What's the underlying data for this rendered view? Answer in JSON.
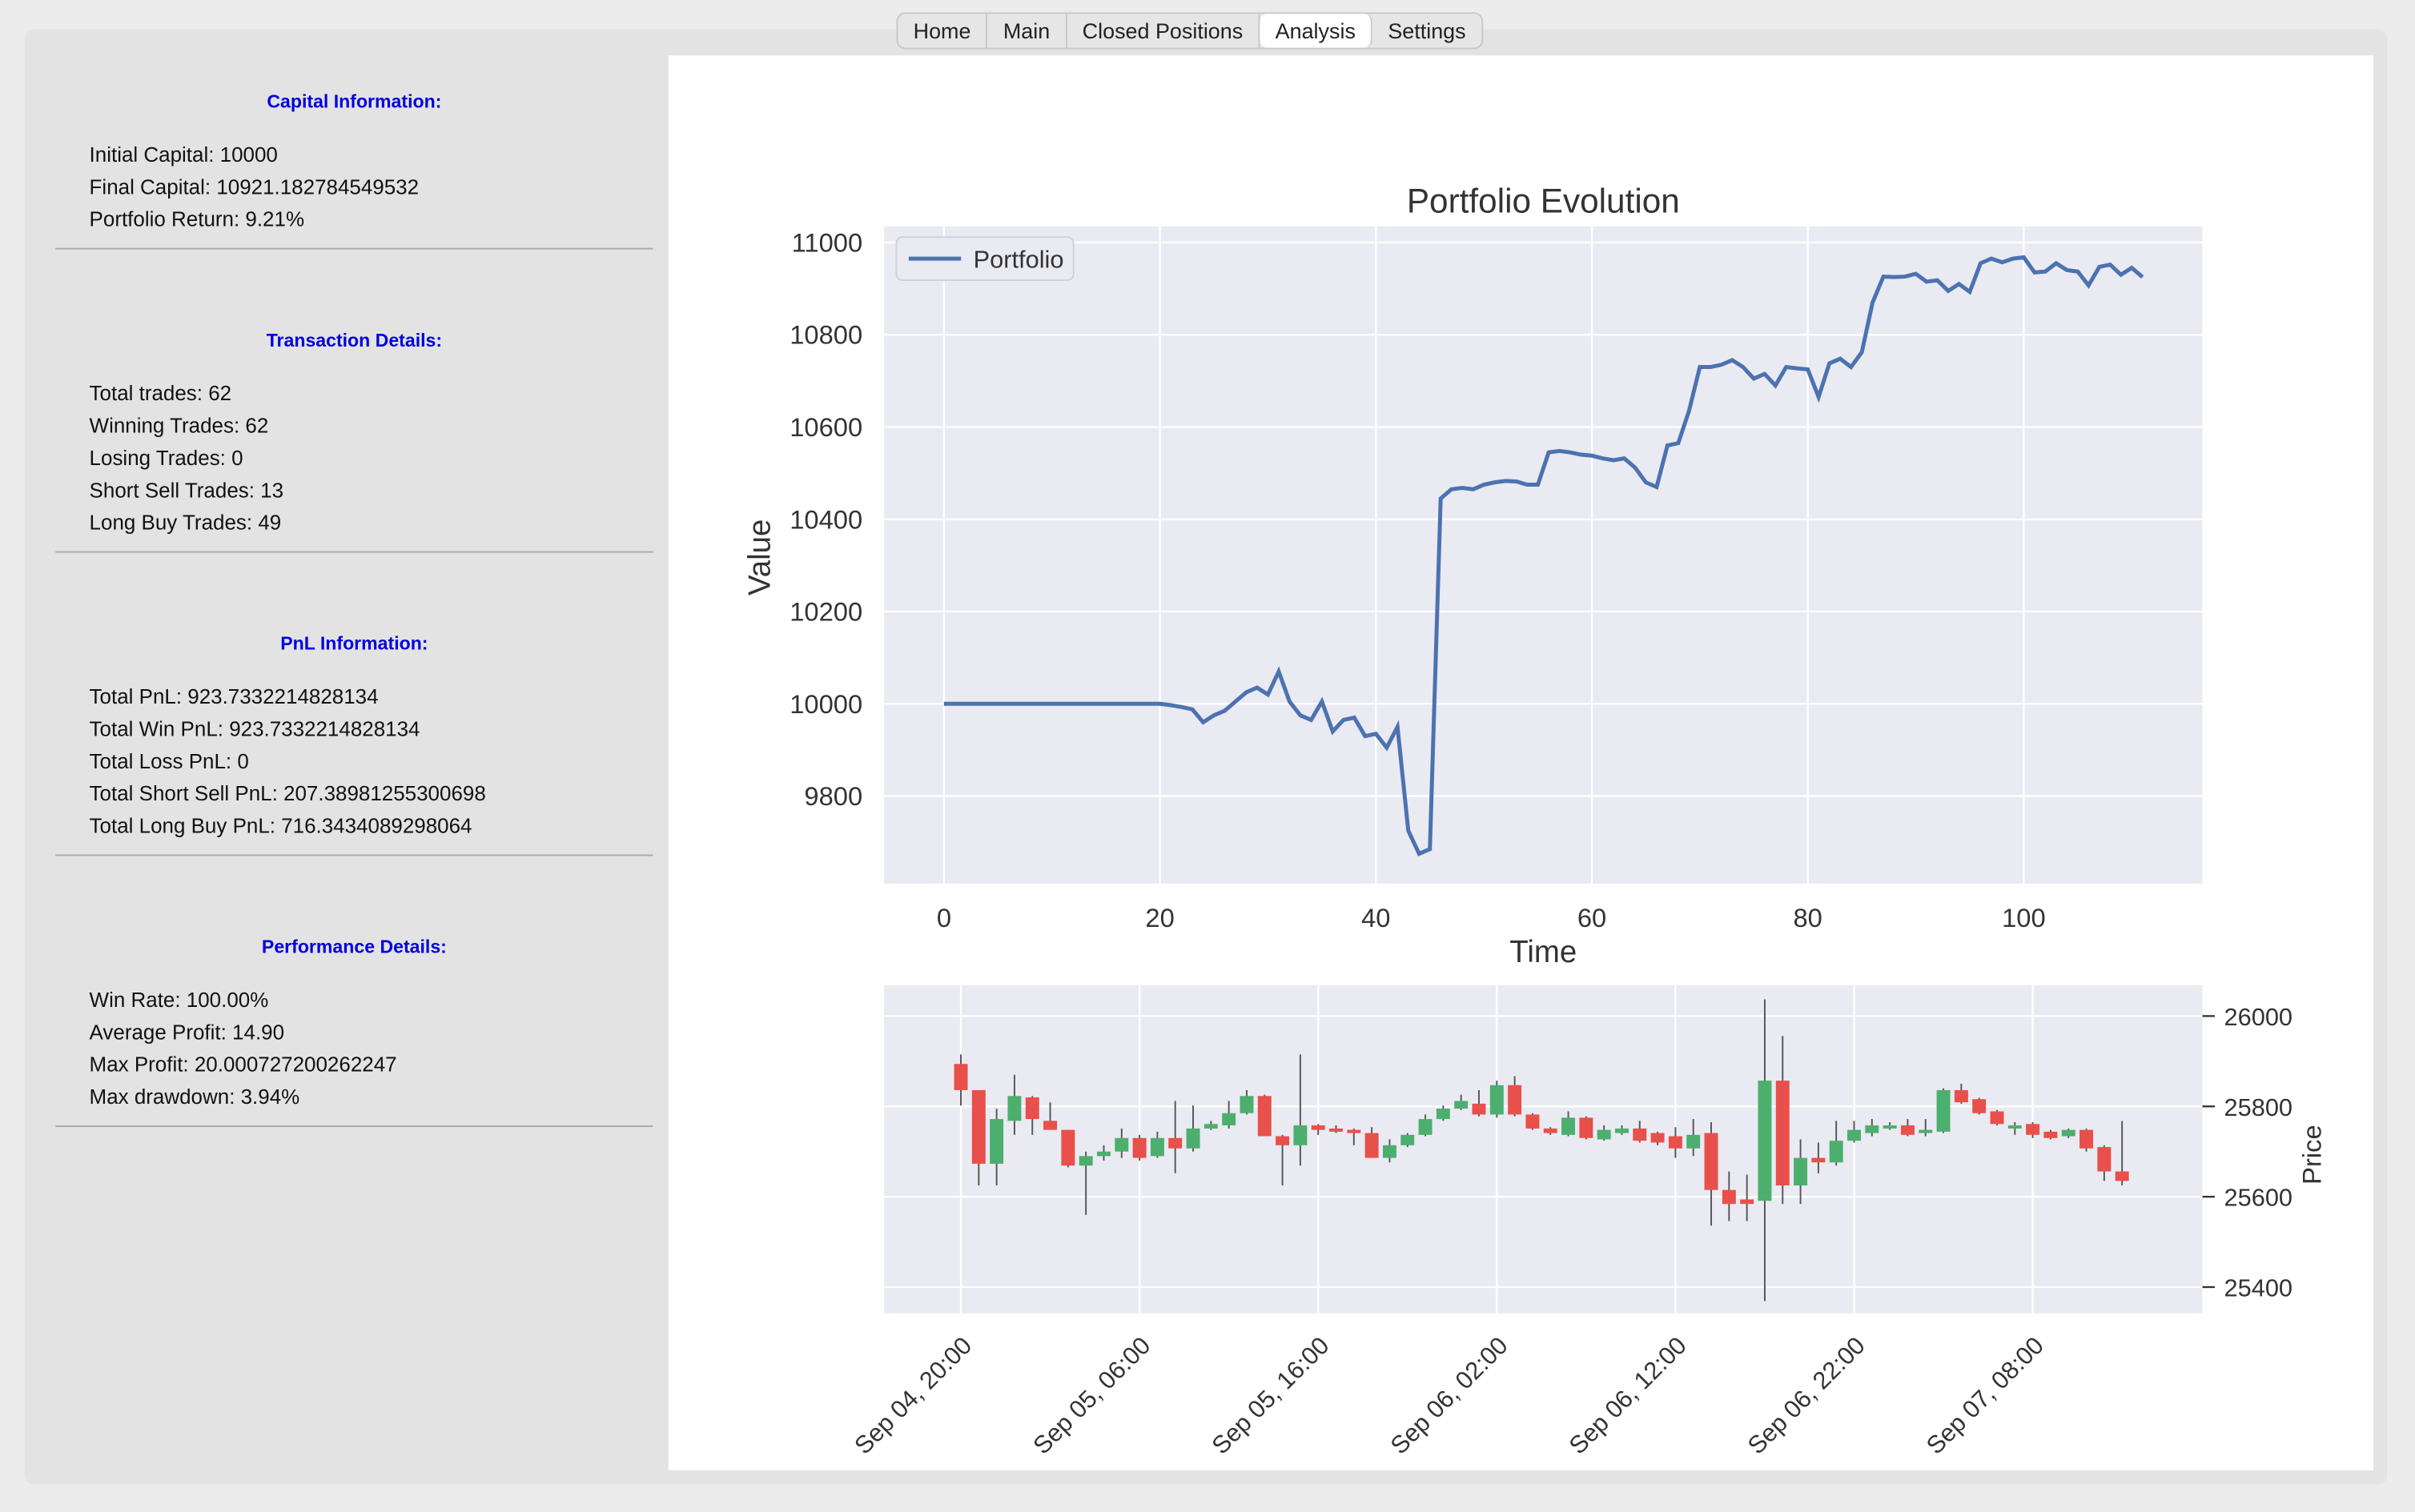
{
  "tabs": [
    "Home",
    "Main",
    "Closed Positions",
    "Analysis",
    "Settings"
  ],
  "active_tab": "Analysis",
  "sections": [
    {
      "title": "Capital Information:",
      "lines": [
        "Initial Capital: 10000",
        "Final Capital: 10921.182784549532",
        "Portfolio Return: 9.21%"
      ]
    },
    {
      "title": "Transaction Details:",
      "lines": [
        "Total trades: 62",
        "Winning Trades: 62",
        "Losing Trades: 0",
        "Short Sell Trades: 13",
        "Long Buy Trades: 49"
      ]
    },
    {
      "title": "PnL Information:",
      "lines": [
        "Total PnL: 923.7332214828134",
        "Total Win PnL: 923.7332214828134",
        "Total Loss PnL: 0",
        "Total Short Sell PnL: 207.38981255300698",
        "Total Long Buy PnL: 716.3434089298064"
      ]
    },
    {
      "title": "Performance Details:",
      "lines": [
        "Win Rate: 100.00%",
        "Average Profit: 14.90",
        "Max Profit: 20.000727200262247",
        "Max drawdown: 3.94%"
      ]
    }
  ],
  "chart_data": [
    {
      "type": "line",
      "title": "Portfolio Evolution",
      "xlabel": "Time",
      "ylabel": "Value",
      "legend": "upper left",
      "grid": true,
      "x": [
        0,
        1,
        2,
        3,
        4,
        5,
        6,
        7,
        8,
        9,
        10,
        11,
        12,
        13,
        14,
        15,
        16,
        17,
        18,
        19,
        20,
        21,
        22,
        23,
        24,
        25,
        26,
        27,
        28,
        29,
        30,
        31,
        32,
        33,
        34,
        35,
        36,
        37,
        38,
        39,
        40,
        41,
        42,
        43,
        44,
        45,
        46,
        47,
        48,
        49,
        50,
        51,
        52,
        53,
        54,
        55,
        56,
        57,
        58,
        59,
        60,
        61,
        62,
        63,
        64,
        65,
        66,
        67,
        68,
        69,
        70,
        71,
        72,
        73,
        74,
        75,
        76,
        77,
        78,
        79,
        80,
        81,
        82,
        83,
        84,
        85,
        86,
        87,
        88,
        89,
        90,
        91,
        92,
        93,
        94,
        95,
        96,
        97,
        98,
        99,
        100,
        101,
        102,
        103,
        104,
        105,
        106,
        107,
        108,
        109,
        110,
        111
      ],
      "series": [
        {
          "name": "Portfolio",
          "color": "#4c72b0",
          "values": [
            10000,
            10000,
            10000,
            10000,
            10000,
            10000,
            10000,
            10000,
            10000,
            10000,
            10000,
            10000,
            10000,
            10000,
            10000,
            10000,
            10000,
            10000,
            10000,
            10000,
            10000,
            9997,
            9993,
            9988,
            9960,
            9975,
            9985,
            10005,
            10025,
            10035,
            10020,
            10070,
            10005,
            9975,
            9965,
            10005,
            9940,
            9965,
            9970,
            9930,
            9935,
            9905,
            9950,
            9725,
            9675,
            9685,
            10445,
            10465,
            10468,
            10465,
            10475,
            10480,
            10483,
            10482,
            10475,
            10475,
            10545,
            10548,
            10545,
            10540,
            10538,
            10532,
            10528,
            10532,
            10512,
            10480,
            10470,
            10560,
            10565,
            10635,
            10730,
            10730,
            10735,
            10745,
            10730,
            10705,
            10715,
            10690,
            10730,
            10727,
            10725,
            10665,
            10738,
            10748,
            10730,
            10762,
            10870,
            10926,
            10925,
            10926,
            10932,
            10915,
            10918,
            10895,
            10910,
            10893,
            10955,
            10965,
            10957,
            10965,
            10968,
            10935,
            10937,
            10955,
            10940,
            10937,
            10907,
            10947,
            10952,
            10930,
            10945,
            10925
          ]
        }
      ],
      "xlim": [
        -5.55,
        116.55
      ],
      "xticks": [
        0,
        20,
        40,
        60,
        80,
        100
      ],
      "ylim": [
        9610,
        11035
      ],
      "yticks": [
        9800,
        10000,
        10200,
        10400,
        10600,
        10800,
        11000
      ]
    },
    {
      "type": "candlestick",
      "ylabel": "Price",
      "yaxis_side": "right",
      "grid": true,
      "up_color": "#4caf6e",
      "down_color": "#e8504b",
      "categories": [
        "Sep 04, 20:00",
        null,
        null,
        null,
        null,
        null,
        null,
        null,
        null,
        null,
        "Sep 05, 06:00",
        null,
        null,
        null,
        null,
        null,
        null,
        null,
        null,
        null,
        "Sep 05, 16:00",
        null,
        null,
        null,
        null,
        null,
        null,
        null,
        null,
        null,
        "Sep 06, 02:00",
        null,
        null,
        null,
        null,
        null,
        null,
        null,
        null,
        null,
        "Sep 06, 12:00",
        null,
        null,
        null,
        null,
        null,
        null,
        null,
        null,
        null,
        "Sep 06, 22:00",
        null,
        null,
        null,
        null,
        null,
        null,
        null,
        null,
        null,
        "Sep 07, 08:00",
        null,
        null,
        null,
        null,
        null
      ],
      "open": [
        25894,
        25836,
        25673,
        25768,
        25820,
        25768,
        25748,
        25669,
        25690,
        25700,
        25730,
        25690,
        25730,
        25707,
        25751,
        25758,
        25785,
        25823,
        25734,
        25714,
        25758,
        25751,
        25748,
        25741,
        25686,
        25714,
        25737,
        25772,
        25795,
        25806,
        25782,
        25847,
        25782,
        25751,
        25737,
        25775,
        25727,
        25741,
        25751,
        25741,
        25734,
        25707,
        25741,
        25615,
        25594,
        25591,
        25857,
        25625,
        25686,
        25676,
        25724,
        25741,
        25751,
        25758,
        25741,
        25744,
        25836,
        25816,
        25789,
        25751,
        25761,
        25744,
        25734,
        25748,
        25710,
        25656
      ],
      "high": [
        25915,
        25836,
        25795,
        25870,
        25823,
        25809,
        25748,
        25700,
        25714,
        25751,
        25737,
        25744,
        25812,
        25802,
        25768,
        25812,
        25836,
        25826,
        25737,
        25915,
        25761,
        25758,
        25751,
        25754,
        25727,
        25741,
        25782,
        25802,
        25826,
        25836,
        25857,
        25867,
        25785,
        25754,
        25789,
        25778,
        25758,
        25758,
        25768,
        25744,
        25754,
        25772,
        25765,
        25656,
        25649,
        26037,
        25956,
        25727,
        25720,
        25768,
        25768,
        25772,
        25765,
        25772,
        25772,
        25840,
        25850,
        25819,
        25792,
        25765,
        25765,
        25748,
        25751,
        25751,
        25714,
        25768
      ],
      "low": [
        25802,
        25625,
        25625,
        25737,
        25737,
        25748,
        25665,
        25560,
        25680,
        25686,
        25680,
        25686,
        25652,
        25700,
        25748,
        25751,
        25782,
        25734,
        25625,
        25669,
        25737,
        25741,
        25714,
        25686,
        25676,
        25710,
        25734,
        25768,
        25792,
        25778,
        25775,
        25778,
        25748,
        25737,
        25734,
        25727,
        25724,
        25737,
        25720,
        25714,
        25686,
        25690,
        25536,
        25546,
        25546,
        25369,
        25584,
        25584,
        25652,
        25669,
        25720,
        25734,
        25748,
        25734,
        25734,
        25741,
        25806,
        25782,
        25758,
        25737,
        25730,
        25727,
        25730,
        25700,
        25635,
        25625
      ],
      "close": [
        25836,
        25673,
        25772,
        25823,
        25772,
        25748,
        25669,
        25690,
        25700,
        25730,
        25686,
        25730,
        25707,
        25751,
        25761,
        25785,
        25823,
        25734,
        25714,
        25758,
        25748,
        25744,
        25741,
        25686,
        25714,
        25737,
        25772,
        25795,
        25812,
        25782,
        25847,
        25782,
        25751,
        25741,
        25775,
        25730,
        25748,
        25751,
        25724,
        25720,
        25707,
        25737,
        25615,
        25584,
        25584,
        25857,
        25625,
        25686,
        25676,
        25724,
        25748,
        25758,
        25758,
        25737,
        25748,
        25836,
        25809,
        25785,
        25761,
        25758,
        25737,
        25730,
        25748,
        25707,
        25656,
        25635
      ],
      "xlim": [
        -4.3,
        69.5
      ],
      "ylim": [
        25342,
        26068
      ],
      "yticks": [
        25400,
        25600,
        25800,
        26000
      ]
    }
  ]
}
